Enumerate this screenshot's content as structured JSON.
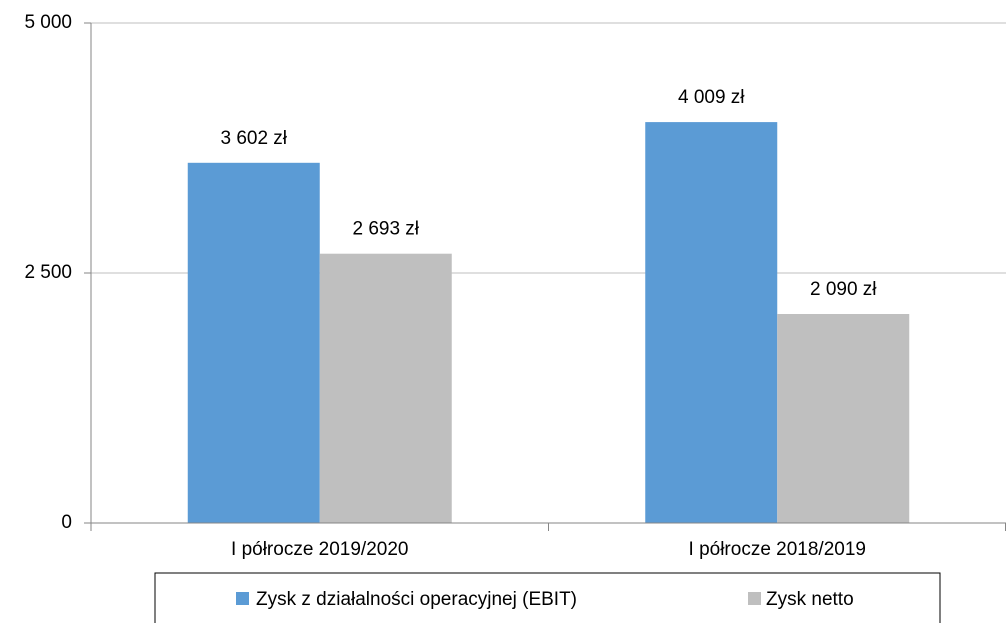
{
  "chart_data": {
    "type": "bar",
    "categories": [
      "I półrocze 2019/2020",
      "I półrocze 2018/2019"
    ],
    "series": [
      {
        "name": "Zysk z działalności operacyjnej (EBIT)",
        "color": "#5b9bd5",
        "values": [
          3602,
          4009
        ],
        "value_labels": [
          "3 602 zł",
          "4 009 zł"
        ]
      },
      {
        "name": "Zysk netto",
        "color": "#bfbfbf",
        "values": [
          2693,
          2090
        ],
        "value_labels": [
          "2 693 zł",
          "2 090 zł"
        ]
      }
    ],
    "ylim": [
      0,
      5000
    ],
    "yticks": [
      0,
      {
        "value": 2500,
        "label": "2 500"
      },
      {
        "value": 5000,
        "label": "5 000"
      }
    ],
    "grid": true,
    "legend": "bottom"
  }
}
